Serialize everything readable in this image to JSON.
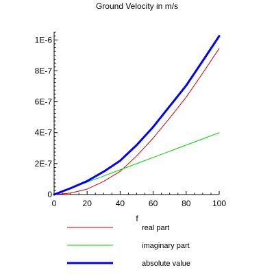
{
  "chart_data": {
    "type": "line",
    "title": "Ground Velocity in m/s",
    "xlabel": "f",
    "ylabel": "",
    "xlim": [
      0,
      100
    ],
    "ylim": [
      0,
      1.05e-06
    ],
    "x_ticks": [
      0,
      20,
      40,
      60,
      80,
      100
    ],
    "x_tick_labels": [
      "0",
      "20",
      "40",
      "60",
      "80",
      "100"
    ],
    "y_ticks": [
      0,
      2e-07,
      4e-07,
      6e-07,
      8e-07,
      1e-06
    ],
    "y_tick_labels": [
      "0",
      "2E-7",
      "4E-7",
      "6E-7",
      "8E-7",
      "1E-6"
    ],
    "grid": false,
    "legend_position": "bottom",
    "series": [
      {
        "name": "real part",
        "color": "#cc0000",
        "width": 1,
        "x": [
          0,
          10,
          20,
          30,
          40,
          50,
          60,
          70,
          80,
          90,
          100
        ],
        "y": [
          0,
          1e-08,
          3.5e-08,
          8.5e-08,
          1.5e-07,
          2.5e-07,
          3.65e-07,
          4.95e-07,
          6.3e-07,
          7.85e-07,
          9.45e-07
        ]
      },
      {
        "name": "imaginary part",
        "color": "#00cc00",
        "width": 1,
        "x": [
          0,
          10,
          20,
          30,
          40,
          50,
          60,
          70,
          80,
          90,
          100
        ],
        "y": [
          0,
          4e-08,
          8e-08,
          1.2e-07,
          1.6e-07,
          2e-07,
          2.4e-07,
          2.8e-07,
          3.2e-07,
          3.6e-07,
          4e-07
        ]
      },
      {
        "name": "absolute value",
        "color": "#0000ee",
        "width": 3,
        "x": [
          0,
          10,
          20,
          30,
          40,
          50,
          60,
          70,
          80,
          90,
          100
        ],
        "y": [
          0,
          4.1e-08,
          8.7e-08,
          1.48e-07,
          2.19e-07,
          3.2e-07,
          4.37e-07,
          5.71e-07,
          7.05e-07,
          8.64e-07,
          1.025e-06
        ]
      }
    ]
  }
}
